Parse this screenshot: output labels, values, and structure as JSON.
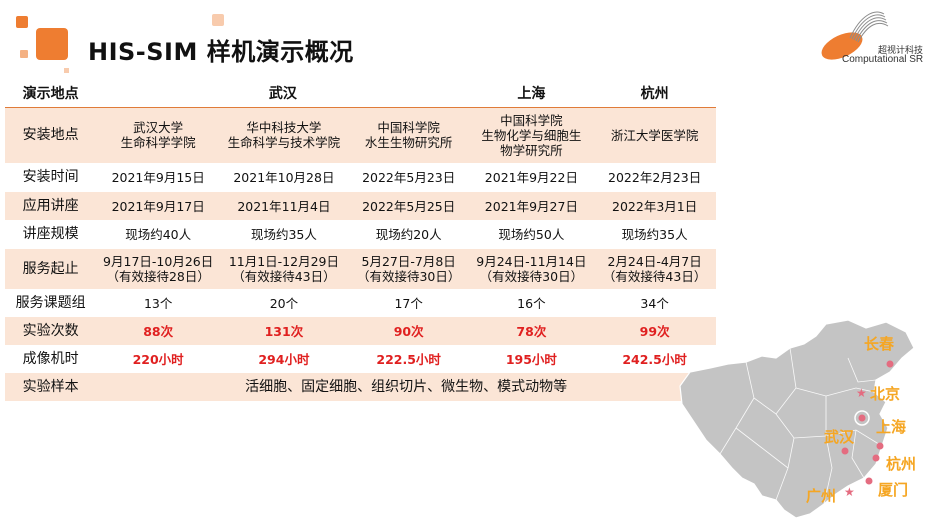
{
  "title": "HIS-SIM 样机演示概况",
  "logo": {
    "cn": "超视计科技",
    "en": "Computational SR"
  },
  "colors": {
    "accent": "#ee7d31",
    "shade": "#fbe5d6",
    "red": "#e02020",
    "city": "#f5a623"
  },
  "table": {
    "header": {
      "label": "演示地点",
      "cities": [
        "武汉",
        "上海",
        "杭州"
      ]
    },
    "rows": [
      {
        "label": "安装地点",
        "cells": [
          "武汉大学\n生命科学学院",
          "华中科技大学\n生命科学与技术学院",
          "中国科学院\n水生生物研究所",
          "中国科学院\n生物化学与细胞生\n物学研究所",
          "浙江大学医学院"
        ]
      },
      {
        "label": "安装时间",
        "cells": [
          "2021年9月15日",
          "2021年10月28日",
          "2022年5月23日",
          "2021年9月22日",
          "2022年2月23日"
        ]
      },
      {
        "label": "应用讲座",
        "cells": [
          "2021年9月17日",
          "2021年11月4日",
          "2022年5月25日",
          "2021年9月27日",
          "2022年3月1日"
        ]
      },
      {
        "label": "讲座规模",
        "cells": [
          "现场约40人",
          "现场约35人",
          "现场约20人",
          "现场约50人",
          "现场约35人"
        ]
      },
      {
        "label": "服务起止",
        "cells": [
          "9月17日-10月26日\n（有效接待28日）",
          "11月1日-12月29日\n（有效接待43日）",
          "5月27日-7月8日\n（有效接待30日）",
          "9月24日-11月14日\n（有效接待30日）",
          "2月24日-4月7日\n（有效接待43日）"
        ]
      },
      {
        "label": "服务课题组",
        "cells": [
          "13个",
          "20个",
          "17个",
          "16个",
          "34个"
        ]
      },
      {
        "label": "实验次数",
        "cells": [
          "88次",
          "131次",
          "90次",
          "78次",
          "99次"
        ]
      },
      {
        "label": "成像机时",
        "cells": [
          "220小时",
          "294小时",
          "222.5小时",
          "195小时",
          "242.5小时"
        ]
      }
    ],
    "samples": {
      "label": "实验样本",
      "value": "活细胞、固定细胞、组织切片、微生物、模式动物等"
    }
  },
  "map": {
    "cities": [
      "长春",
      "北京",
      "上海",
      "武汉",
      "杭州",
      "广州",
      "厦门"
    ]
  }
}
